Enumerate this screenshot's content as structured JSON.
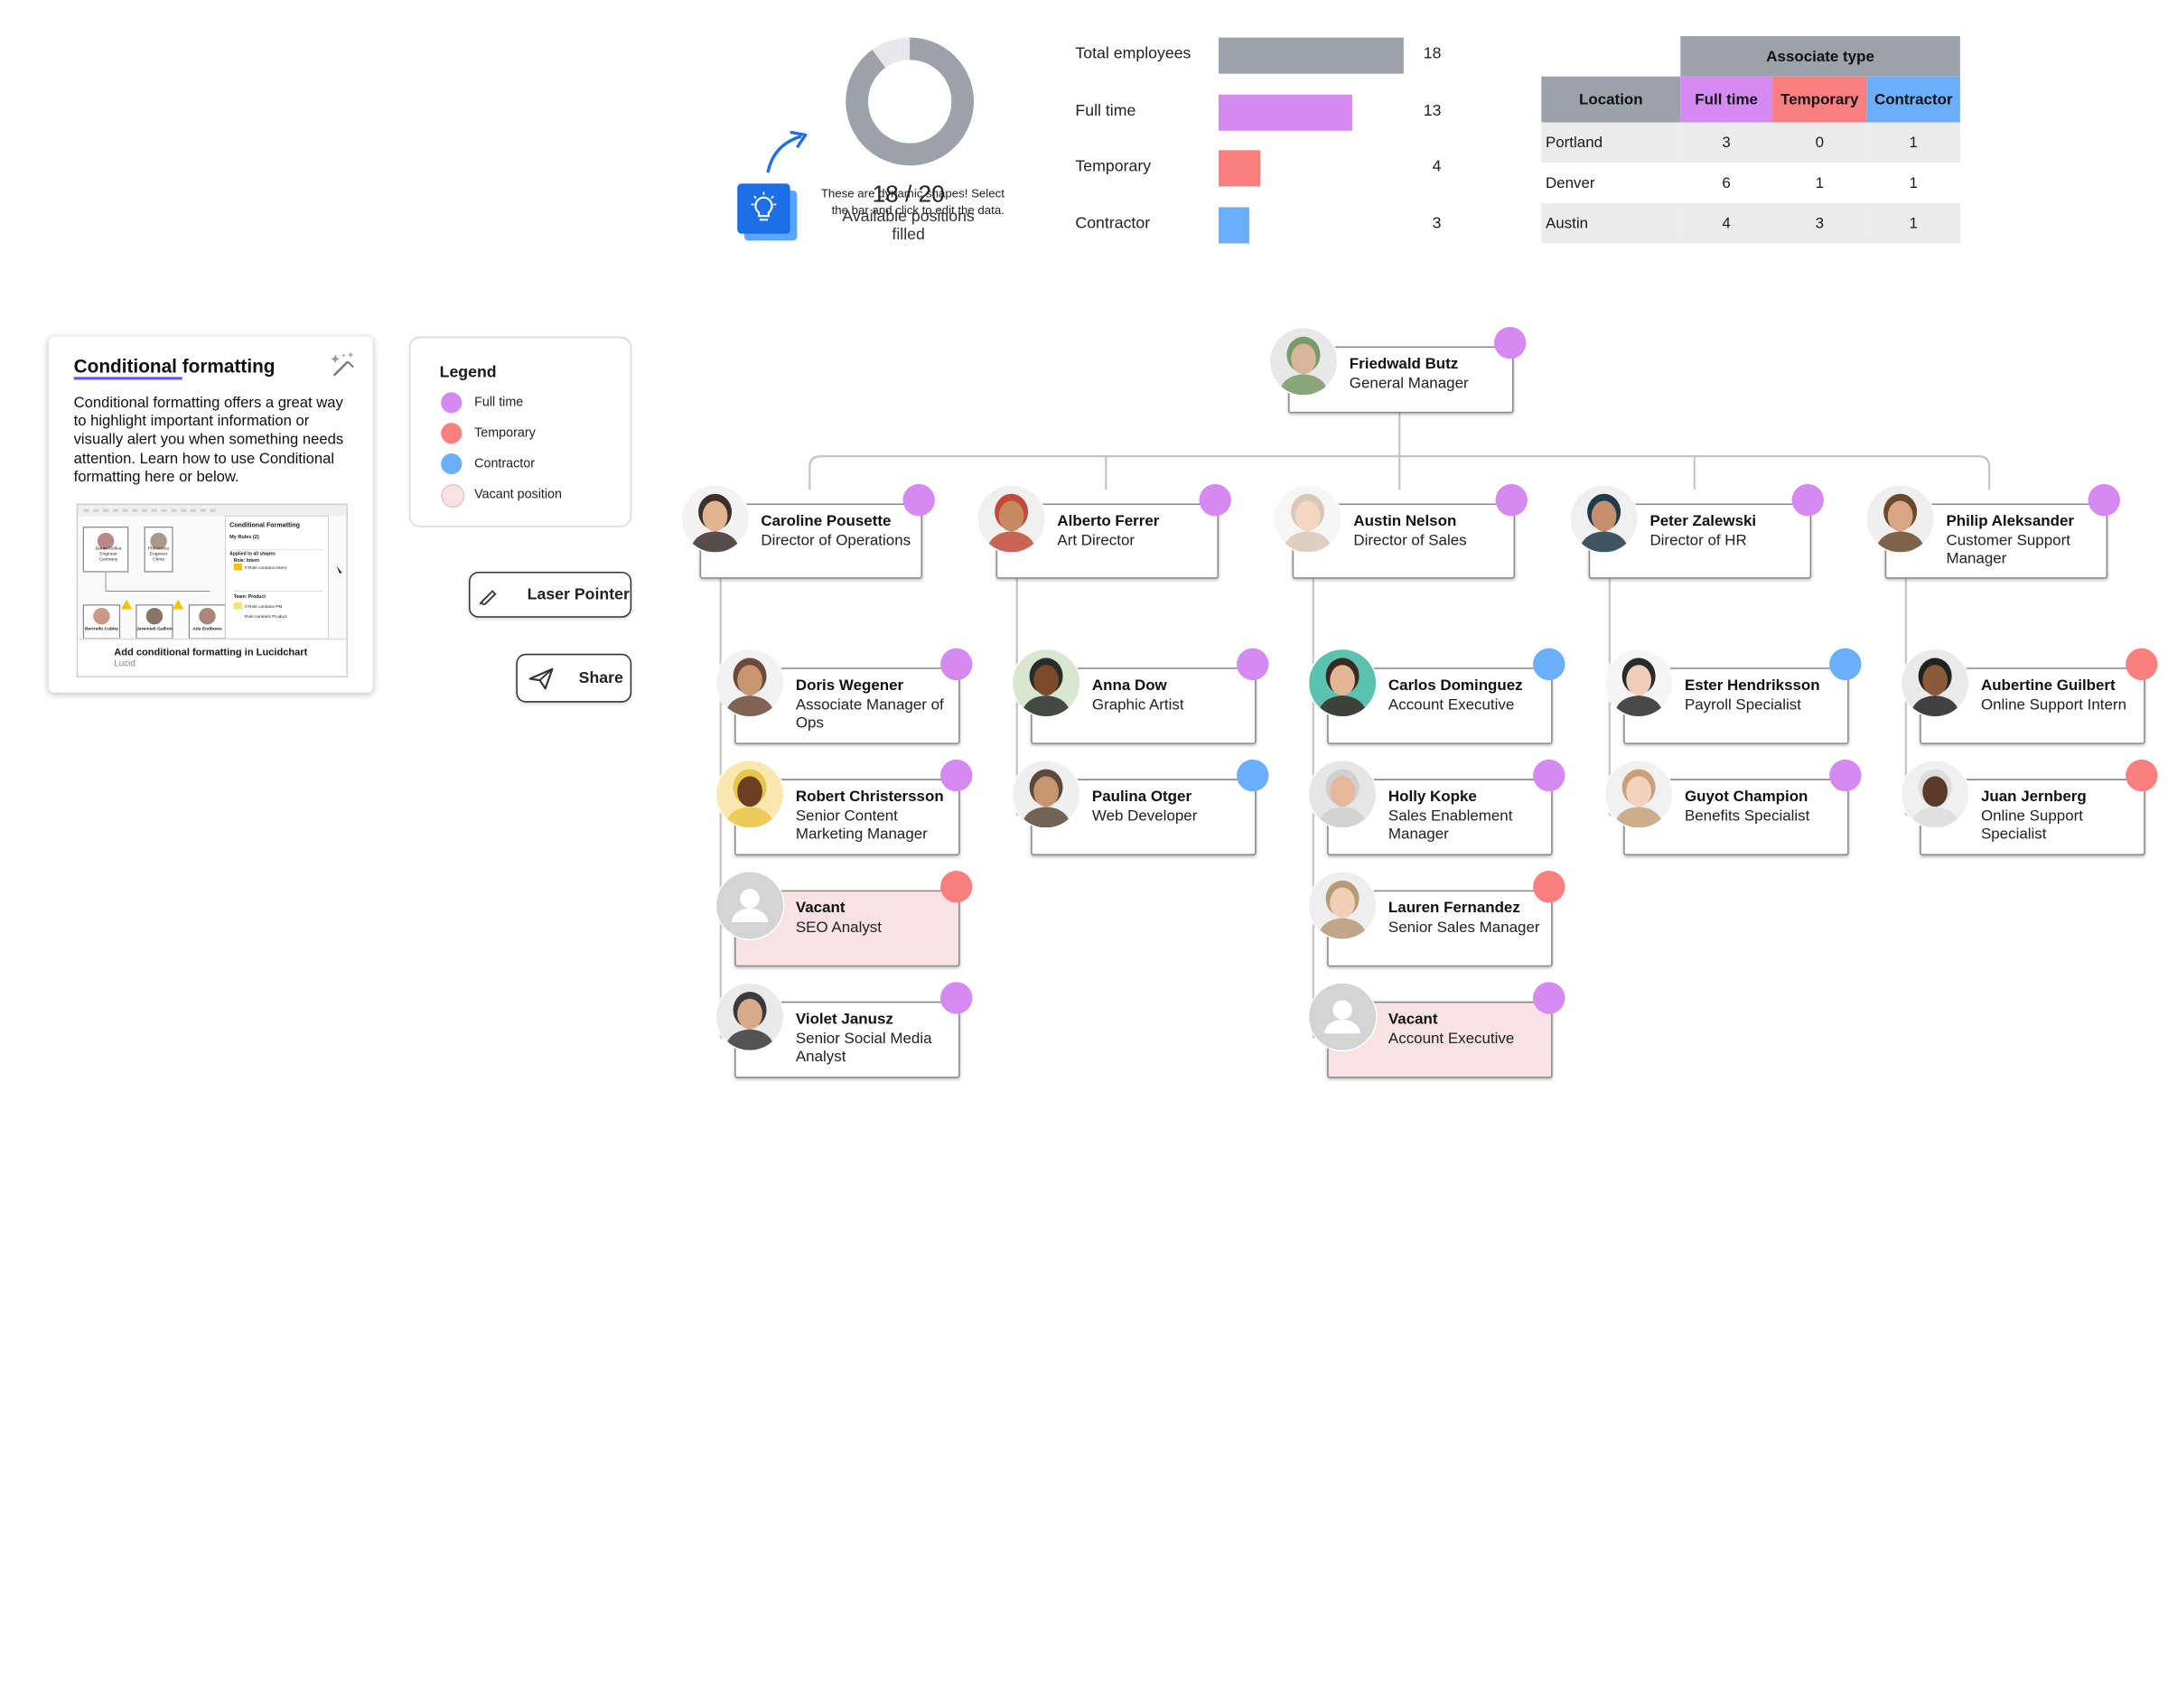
{
  "colors": {
    "full_time": "#d48af0",
    "temporary": "#fc7f80",
    "contractor": "#6aaefc",
    "vacant": "#f8e2e2",
    "total": "#9ca2aa",
    "link": "#1e6fe6"
  },
  "stats": {
    "hint": "These are dynamic shapes! Select the bar and click to edit the data.",
    "donut_value": "18 / 20",
    "donut_label": "Available positions filled",
    "rows": [
      {
        "label": "Total employees",
        "count": "18",
        "key": "total"
      },
      {
        "label": "Full time",
        "count": "13",
        "key": "full_time"
      },
      {
        "label": "Temporary",
        "count": "4",
        "key": "temporary"
      },
      {
        "label": "Contractor",
        "count": "3",
        "key": "contractor"
      }
    ],
    "table": {
      "group_header": "Associate type",
      "headers": [
        "Location",
        "Full time",
        "Temporary",
        "Contractor"
      ],
      "rows": [
        [
          "Portland",
          "3",
          "0",
          "1"
        ],
        [
          "Denver",
          "6",
          "1",
          "1"
        ],
        [
          "Austin",
          "4",
          "3",
          "1"
        ]
      ]
    }
  },
  "card": {
    "title": "Conditional formatting",
    "body": "Conditional formatting offers a great way to highlight important information or visually alert you when something needs attention. Learn how to use Conditional formatting here or below.",
    "thumb_caption": "Add conditional formatting in Lucidchart",
    "thumb_source": "Lucid",
    "thumb_panel_title": "Conditional Formatting",
    "thumb_rules": "My Rules (2)",
    "thumb_applied": "Applied to all shapes",
    "thumb_rule1": "Role: Intern",
    "thumb_rule1_detail": "If Role contains Intern",
    "thumb_rule2": "Team: Product",
    "thumb_rule2_detail": "If Role contains PM",
    "thumb_rule2_detail2": "Role contains Product",
    "thumb_people": [
      {
        "name": "Dante Gollea",
        "title": "Engineer",
        "team": "Germany"
      },
      {
        "name": "Phil Accies",
        "title": "Engineer",
        "team": "China"
      },
      {
        "name": "Bertrello Cubby"
      },
      {
        "name": "Jeremiah Gallion"
      },
      {
        "name": "Ada Endbows"
      }
    ]
  },
  "legend": {
    "title": "Legend",
    "items": [
      {
        "label": "Full time",
        "color": "#d48af0"
      },
      {
        "label": "Temporary",
        "color": "#fc7f80"
      },
      {
        "label": "Contractor",
        "color": "#6aaefc"
      },
      {
        "label": "Vacant position",
        "color": "#f8e2e2"
      }
    ]
  },
  "buttons": {
    "laser": "Laser Pointer",
    "share": "Share"
  },
  "org": {
    "gm": {
      "name": "Friedwald Butz",
      "title": "General Manager",
      "status": "full_time"
    },
    "columns": [
      {
        "lead": {
          "name": "Caroline Pousette",
          "title": "Director of Operations",
          "status": "full_time"
        },
        "reports": [
          {
            "name": "Doris Wegener",
            "title": "Associate Manager of Ops",
            "status": "full_time"
          },
          {
            "name": "Robert Christersson",
            "title": "Senior Content Marketing Manager",
            "status": "full_time"
          },
          {
            "name": "Vacant",
            "title": "SEO Analyst",
            "status": "temporary",
            "vacant": true
          },
          {
            "name": "Violet Janusz",
            "title": "Senior Social Media Analyst",
            "status": "full_time"
          }
        ]
      },
      {
        "lead": {
          "name": "Alberto Ferrer",
          "title": "Art Director",
          "status": "full_time"
        },
        "reports": [
          {
            "name": "Anna Dow",
            "title": "Graphic Artist",
            "status": "full_time"
          },
          {
            "name": "Paulina Otger",
            "title": "Web Developer",
            "status": "contractor"
          }
        ]
      },
      {
        "lead": {
          "name": "Austin Nelson",
          "title": "Director of Sales",
          "status": "full_time"
        },
        "reports": [
          {
            "name": "Carlos Dominguez",
            "title": "Account Executive",
            "status": "contractor"
          },
          {
            "name": "Holly Kopke",
            "title": "Sales Enablement Manager",
            "status": "full_time"
          },
          {
            "name": "Lauren Fernandez",
            "title": "Senior Sales Manager",
            "status": "temporary"
          },
          {
            "name": "Vacant",
            "title": "Account Executive",
            "status": "full_time",
            "vacant": true
          }
        ]
      },
      {
        "lead": {
          "name": "Peter Zalewski",
          "title": "Director of HR",
          "status": "full_time"
        },
        "reports": [
          {
            "name": "Ester Hendriksson",
            "title": "Payroll Specialist",
            "status": "contractor"
          },
          {
            "name": "Guyot Champion",
            "title": "Benefits Specialist",
            "status": "full_time"
          }
        ]
      },
      {
        "lead": {
          "name": "Philip Aleksander",
          "title": "Customer Support Manager",
          "status": "full_time"
        },
        "reports": [
          {
            "name": "Aubertine Guilbert",
            "title": "Online Support Intern",
            "status": "temporary"
          },
          {
            "name": "Juan Jernberg",
            "title": "Online Support Specialist",
            "status": "temporary"
          }
        ]
      }
    ]
  }
}
